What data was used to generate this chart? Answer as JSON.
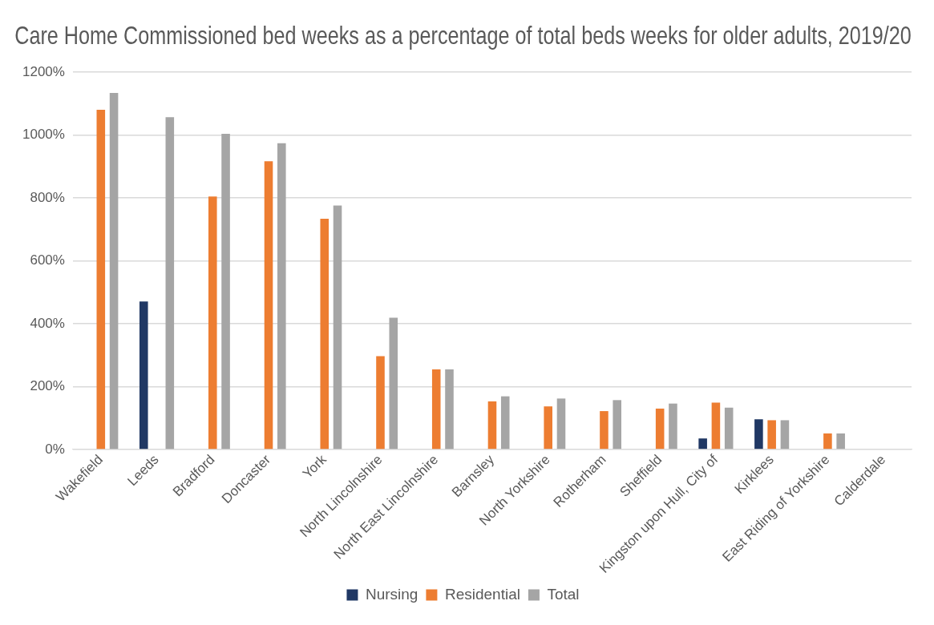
{
  "chart_data": {
    "type": "bar",
    "title": "Care Home Commissioned bed weeks as a percentage of total beds weeks for older adults, 2019/20",
    "categories": [
      "Wakefield",
      "Leeds",
      "Bradford",
      "Doncaster",
      "York",
      "North Lincolnshire",
      "North East Lincolnshire",
      "Barnsley",
      "North Yorkshire",
      "Rotherham",
      "Sheffield",
      "Kingston upon Hull, City of",
      "Kirklees",
      "East Riding of Yorkshire",
      "Calderdale"
    ],
    "series": [
      {
        "name": "Nursing",
        "color": "#203864",
        "values": [
          null,
          471,
          null,
          null,
          null,
          null,
          null,
          null,
          null,
          null,
          null,
          35,
          96,
          null,
          null
        ]
      },
      {
        "name": "Residential",
        "color": "#ed7d31",
        "values": [
          1081,
          null,
          805,
          917,
          734,
          297,
          255,
          153,
          137,
          122,
          130,
          149,
          93,
          51,
          null
        ]
      },
      {
        "name": "Total",
        "color": "#a5a5a5",
        "values": [
          1134,
          1057,
          1004,
          974,
          776,
          419,
          255,
          169,
          162,
          157,
          146,
          133,
          93,
          51,
          null
        ]
      }
    ],
    "ylim": [
      0,
      1200
    ],
    "yticks": [
      {
        "value": 0,
        "label": "0%"
      },
      {
        "value": 200,
        "label": "200%"
      },
      {
        "value": 400,
        "label": "400%"
      },
      {
        "value": 600,
        "label": "600%"
      },
      {
        "value": 800,
        "label": "800%"
      },
      {
        "value": 1000,
        "label": "1000%"
      },
      {
        "value": 1200,
        "label": "1200%"
      }
    ],
    "grid": "y",
    "legend": "bottom"
  }
}
